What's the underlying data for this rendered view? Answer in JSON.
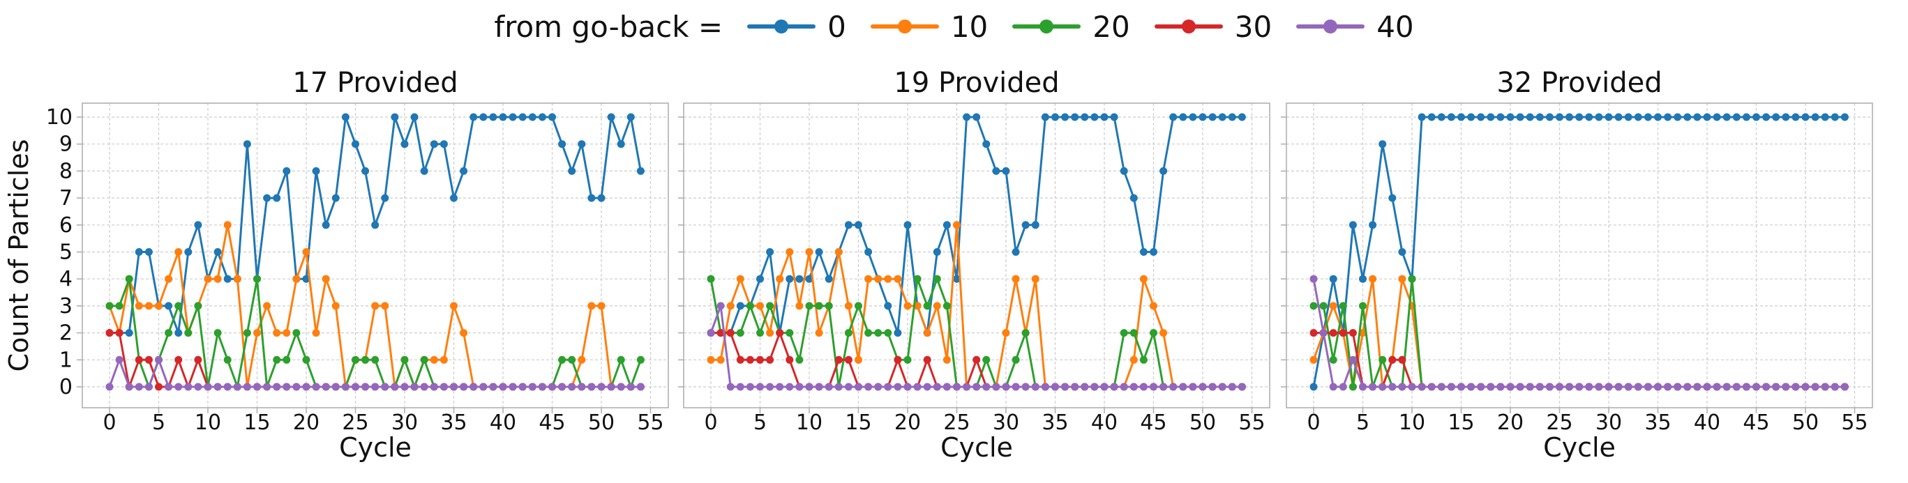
{
  "figure": {
    "legend": {
      "title": "from go-back =",
      "entries": [
        {
          "label": "0",
          "color": "#1f77b4"
        },
        {
          "label": "10",
          "color": "#ff7f0e"
        },
        {
          "label": "20",
          "color": "#2ca02c"
        },
        {
          "label": "30",
          "color": "#d62728"
        },
        {
          "label": "40",
          "color": "#9467bd"
        }
      ]
    },
    "ylabel": "Count of Particles",
    "xlabel": "Cycle",
    "text_color": "#111111",
    "grid_color": "#cccccc",
    "spine_color": "#b0b0b0"
  },
  "chart_data": [
    {
      "type": "line",
      "title": "17 Provided",
      "xlabel": "Cycle",
      "ylabel": "Count of Particles",
      "x_ticks": [
        0,
        5,
        10,
        15,
        20,
        25,
        30,
        35,
        40,
        45,
        50,
        55
      ],
      "y_ticks": [
        0,
        1,
        2,
        3,
        4,
        5,
        6,
        7,
        8,
        9,
        10
      ],
      "ylim": [
        0,
        10
      ],
      "x_start": 0,
      "show_y_tick_labels": true,
      "grid": true,
      "series": [
        {
          "name": "0",
          "color": "#1f77b4",
          "values": [
            2,
            2,
            2,
            5,
            5,
            3,
            3,
            2,
            5,
            6,
            4,
            5,
            4,
            4,
            9,
            4,
            7,
            7,
            8,
            4,
            4,
            8,
            6,
            7,
            10,
            9,
            8,
            6,
            7,
            10,
            9,
            10,
            8,
            9,
            9,
            7,
            8,
            10,
            10,
            10,
            10,
            10,
            10,
            10,
            10,
            10,
            9,
            8,
            9,
            7,
            7,
            10,
            9,
            10,
            8
          ]
        },
        {
          "name": "10",
          "color": "#ff7f0e",
          "values": [
            3,
            2,
            4,
            3,
            3,
            3,
            4,
            5,
            2,
            3,
            4,
            4,
            6,
            4,
            0,
            2,
            3,
            2,
            2,
            4,
            5,
            2,
            4,
            3,
            0,
            1,
            1,
            3,
            3,
            0,
            1,
            0,
            1,
            1,
            1,
            3,
            2,
            0,
            0,
            0,
            0,
            0,
            0,
            0,
            0,
            0,
            0,
            0,
            1,
            3,
            3,
            0,
            0,
            0,
            0
          ]
        },
        {
          "name": "20",
          "color": "#2ca02c",
          "values": [
            3,
            3,
            4,
            1,
            0,
            1,
            2,
            3,
            2,
            3,
            0,
            2,
            1,
            0,
            2,
            4,
            0,
            1,
            1,
            2,
            1,
            0,
            0,
            0,
            0,
            1,
            1,
            1,
            0,
            0,
            1,
            0,
            1,
            0,
            0,
            0,
            0,
            0,
            0,
            0,
            0,
            0,
            0,
            0,
            0,
            0,
            1,
            1,
            0,
            0,
            0,
            0,
            1,
            0,
            1
          ]
        },
        {
          "name": "30",
          "color": "#d62728",
          "values": [
            2,
            2,
            0,
            1,
            1,
            0,
            0,
            1,
            0,
            1,
            0,
            0,
            0,
            0,
            0,
            0,
            0,
            0,
            0,
            0,
            0,
            0,
            0,
            0,
            0,
            0,
            0,
            0,
            0,
            0,
            0,
            0,
            0,
            0,
            0,
            0,
            0,
            0,
            0,
            0,
            0,
            0,
            0,
            0,
            0,
            0,
            0,
            0,
            0,
            0,
            0,
            0,
            0,
            0,
            0
          ]
        },
        {
          "name": "40",
          "color": "#9467bd",
          "values": [
            0,
            1,
            0,
            0,
            0,
            1,
            0,
            0,
            0,
            0,
            0,
            0,
            0,
            0,
            0,
            0,
            0,
            0,
            0,
            0,
            0,
            0,
            0,
            0,
            0,
            0,
            0,
            0,
            0,
            0,
            0,
            0,
            0,
            0,
            0,
            0,
            0,
            0,
            0,
            0,
            0,
            0,
            0,
            0,
            0,
            0,
            0,
            0,
            0,
            0,
            0,
            0,
            0,
            0,
            0
          ]
        }
      ]
    },
    {
      "type": "line",
      "title": "19 Provided",
      "xlabel": "Cycle",
      "ylabel": "Count of Particles",
      "x_ticks": [
        0,
        5,
        10,
        15,
        20,
        25,
        30,
        35,
        40,
        45,
        50,
        55
      ],
      "y_ticks": [
        0,
        1,
        2,
        3,
        4,
        5,
        6,
        7,
        8,
        9,
        10
      ],
      "ylim": [
        0,
        10
      ],
      "x_start": 0,
      "show_y_tick_labels": false,
      "grid": true,
      "series": [
        {
          "name": "0",
          "color": "#1f77b4",
          "values": [
            2,
            2,
            2,
            3,
            3,
            4,
            5,
            2,
            4,
            4,
            4,
            5,
            4,
            5,
            6,
            6,
            5,
            4,
            3,
            2,
            6,
            3,
            2,
            5,
            6,
            4,
            10,
            10,
            9,
            8,
            8,
            5,
            6,
            6,
            10,
            10,
            10,
            10,
            10,
            10,
            10,
            10,
            8,
            7,
            5,
            5,
            8,
            10,
            10,
            10,
            10,
            10,
            10,
            10,
            10
          ]
        },
        {
          "name": "10",
          "color": "#ff7f0e",
          "values": [
            1,
            1,
            3,
            4,
            3,
            3,
            2,
            4,
            5,
            3,
            5,
            2,
            3,
            5,
            3,
            1,
            4,
            4,
            4,
            4,
            3,
            3,
            2,
            3,
            1,
            6,
            0,
            0,
            0,
            0,
            2,
            4,
            2,
            4,
            0,
            0,
            0,
            0,
            0,
            0,
            0,
            0,
            0,
            1,
            4,
            3,
            2,
            0,
            0,
            0,
            0,
            0,
            0,
            0,
            0
          ]
        },
        {
          "name": "20",
          "color": "#2ca02c",
          "values": [
            4,
            2,
            2,
            2,
            3,
            2,
            3,
            2,
            2,
            1,
            3,
            3,
            3,
            0,
            2,
            3,
            2,
            2,
            2,
            1,
            1,
            4,
            3,
            4,
            3,
            0,
            0,
            0,
            1,
            0,
            0,
            1,
            2,
            0,
            0,
            0,
            0,
            0,
            0,
            0,
            0,
            0,
            2,
            2,
            1,
            2,
            0,
            0,
            0,
            0,
            0,
            0,
            0,
            0,
            0
          ]
        },
        {
          "name": "30",
          "color": "#d62728",
          "values": [
            2,
            2,
            2,
            1,
            1,
            1,
            1,
            2,
            1,
            0,
            0,
            0,
            0,
            1,
            1,
            0,
            0,
            0,
            0,
            1,
            0,
            0,
            1,
            0,
            0,
            0,
            0,
            1,
            0,
            0,
            0,
            0,
            0,
            0,
            0,
            0,
            0,
            0,
            0,
            0,
            0,
            0,
            0,
            0,
            0,
            0,
            0,
            0,
            0,
            0,
            0,
            0,
            0,
            0,
            0
          ]
        },
        {
          "name": "40",
          "color": "#9467bd",
          "values": [
            2,
            3,
            0,
            0,
            0,
            0,
            0,
            0,
            0,
            0,
            0,
            0,
            0,
            0,
            0,
            0,
            0,
            0,
            0,
            0,
            0,
            0,
            0,
            0,
            0,
            0,
            0,
            0,
            0,
            0,
            0,
            0,
            0,
            0,
            0,
            0,
            0,
            0,
            0,
            0,
            0,
            0,
            0,
            0,
            0,
            0,
            0,
            0,
            0,
            0,
            0,
            0,
            0,
            0,
            0
          ]
        }
      ]
    },
    {
      "type": "line",
      "title": "32 Provided",
      "xlabel": "Cycle",
      "ylabel": "Count of Particles",
      "x_ticks": [
        0,
        5,
        10,
        15,
        20,
        25,
        30,
        35,
        40,
        45,
        50,
        55
      ],
      "y_ticks": [
        0,
        1,
        2,
        3,
        4,
        5,
        6,
        7,
        8,
        9,
        10
      ],
      "ylim": [
        0,
        10
      ],
      "x_start": 0,
      "show_y_tick_labels": false,
      "grid": true,
      "series": [
        {
          "name": "0",
          "color": "#1f77b4",
          "values": [
            0,
            2,
            4,
            2,
            6,
            4,
            6,
            9,
            7,
            5,
            4,
            10,
            10,
            10,
            10,
            10,
            10,
            10,
            10,
            10,
            10,
            10,
            10,
            10,
            10,
            10,
            10,
            10,
            10,
            10,
            10,
            10,
            10,
            10,
            10,
            10,
            10,
            10,
            10,
            10,
            10,
            10,
            10,
            10,
            10,
            10,
            10,
            10,
            10,
            10,
            10,
            10,
            10,
            10,
            10
          ]
        },
        {
          "name": "10",
          "color": "#ff7f0e",
          "values": [
            1,
            2,
            3,
            2,
            0,
            2,
            4,
            0,
            1,
            4,
            3,
            0,
            0,
            0,
            0,
            0,
            0,
            0,
            0,
            0,
            0,
            0,
            0,
            0,
            0,
            0,
            0,
            0,
            0,
            0,
            0,
            0,
            0,
            0,
            0,
            0,
            0,
            0,
            0,
            0,
            0,
            0,
            0,
            0,
            0,
            0,
            0,
            0,
            0,
            0,
            0,
            0,
            0,
            0,
            0
          ]
        },
        {
          "name": "20",
          "color": "#2ca02c",
          "values": [
            3,
            3,
            1,
            3,
            0,
            3,
            0,
            1,
            0,
            0,
            4,
            0,
            0,
            0,
            0,
            0,
            0,
            0,
            0,
            0,
            0,
            0,
            0,
            0,
            0,
            0,
            0,
            0,
            0,
            0,
            0,
            0,
            0,
            0,
            0,
            0,
            0,
            0,
            0,
            0,
            0,
            0,
            0,
            0,
            0,
            0,
            0,
            0,
            0,
            0,
            0,
            0,
            0,
            0,
            0
          ]
        },
        {
          "name": "30",
          "color": "#d62728",
          "values": [
            2,
            2,
            2,
            2,
            2,
            0,
            0,
            0,
            1,
            1,
            0,
            0,
            0,
            0,
            0,
            0,
            0,
            0,
            0,
            0,
            0,
            0,
            0,
            0,
            0,
            0,
            0,
            0,
            0,
            0,
            0,
            0,
            0,
            0,
            0,
            0,
            0,
            0,
            0,
            0,
            0,
            0,
            0,
            0,
            0,
            0,
            0,
            0,
            0,
            0,
            0,
            0,
            0,
            0,
            0
          ]
        },
        {
          "name": "40",
          "color": "#9467bd",
          "values": [
            4,
            2,
            0,
            0,
            1,
            0,
            0,
            0,
            0,
            0,
            0,
            0,
            0,
            0,
            0,
            0,
            0,
            0,
            0,
            0,
            0,
            0,
            0,
            0,
            0,
            0,
            0,
            0,
            0,
            0,
            0,
            0,
            0,
            0,
            0,
            0,
            0,
            0,
            0,
            0,
            0,
            0,
            0,
            0,
            0,
            0,
            0,
            0,
            0,
            0,
            0,
            0,
            0,
            0,
            0
          ]
        }
      ]
    }
  ]
}
